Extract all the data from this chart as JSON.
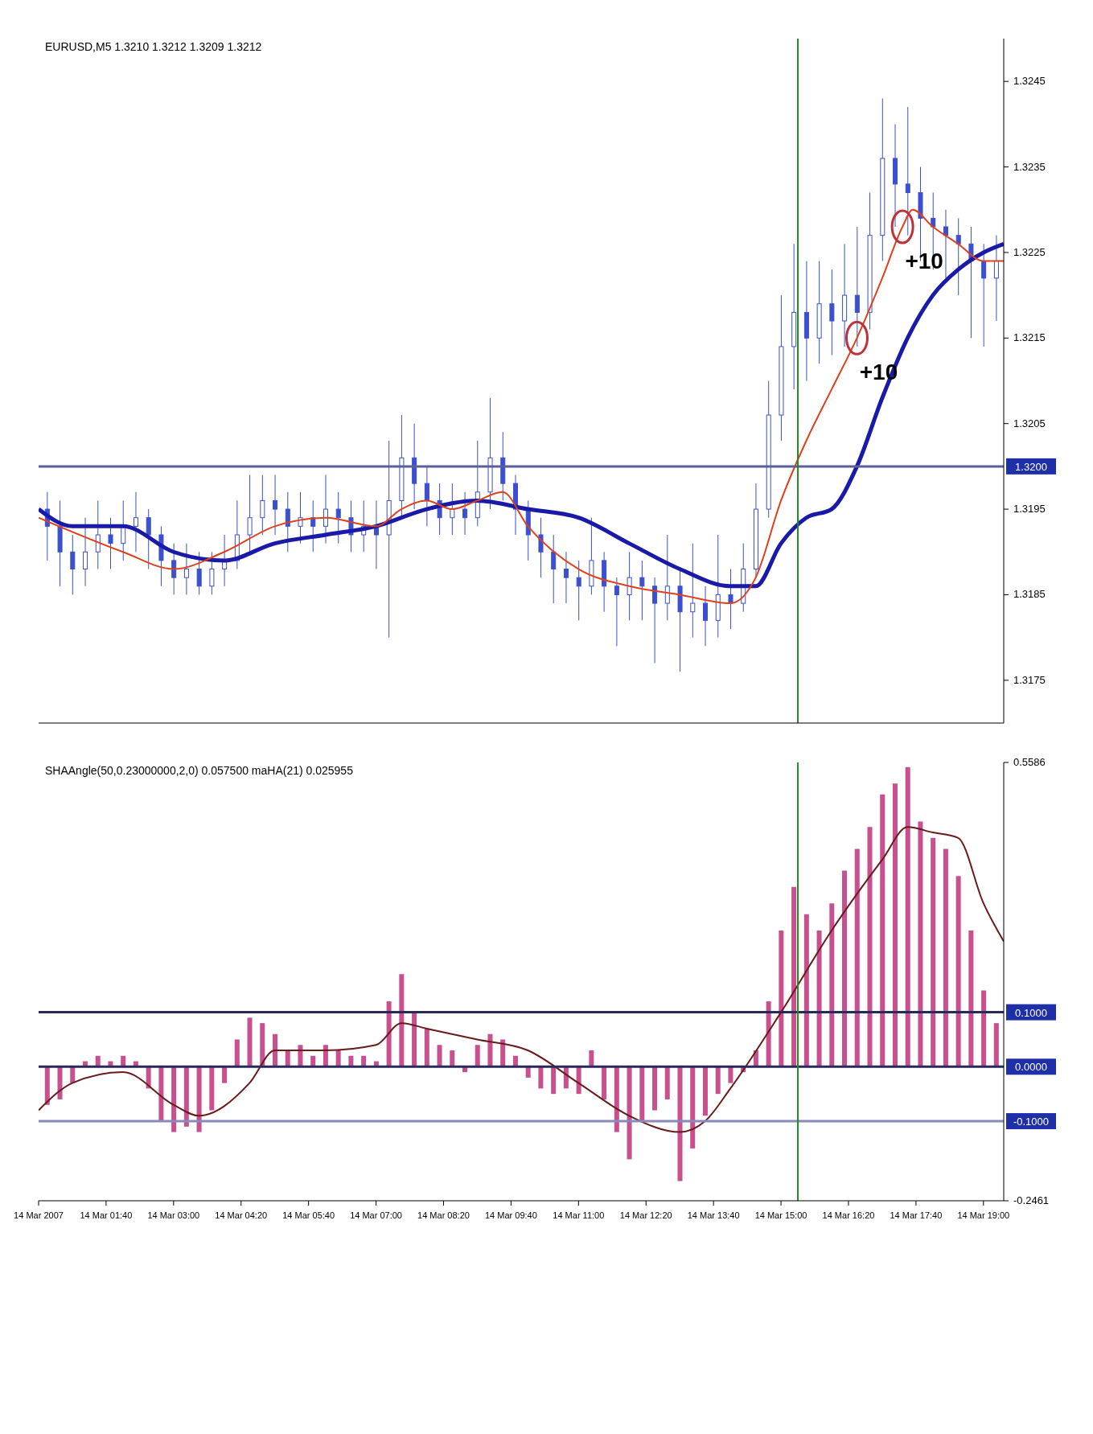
{
  "chart_data": [
    {
      "type": "candlestick",
      "title": "EURUSD,M5 1.3210 1.3212 1.3209 1.3212",
      "color": "#3b4fd0",
      "marker": "none",
      "tick_labels": "y",
      "x": [
        "2007-03-14T00:30",
        "2007-03-14T00:45",
        "2007-03-14T01:00",
        "2007-03-14T01:15",
        "2007-03-14T01:30",
        "2007-03-14T01:45",
        "2007-03-14T02:00",
        "2007-03-14T02:15",
        "2007-03-14T02:30",
        "2007-03-14T02:45",
        "2007-03-14T03:00",
        "2007-03-14T03:15",
        "2007-03-14T03:30",
        "2007-03-14T03:45",
        "2007-03-14T04:00",
        "2007-03-14T04:15",
        "2007-03-14T04:30",
        "2007-03-14T04:45",
        "2007-03-14T05:00",
        "2007-03-14T05:15",
        "2007-03-14T05:30",
        "2007-03-14T05:45",
        "2007-03-14T06:00",
        "2007-03-14T06:15",
        "2007-03-14T06:30",
        "2007-03-14T06:45",
        "2007-03-14T07:00",
        "2007-03-14T07:15",
        "2007-03-14T07:30",
        "2007-03-14T07:45",
        "2007-03-14T08:00",
        "2007-03-14T08:15",
        "2007-03-14T08:30",
        "2007-03-14T08:45",
        "2007-03-14T09:00",
        "2007-03-14T09:15",
        "2007-03-14T09:30",
        "2007-03-14T09:45",
        "2007-03-14T10:00",
        "2007-03-14T10:15",
        "2007-03-14T10:30",
        "2007-03-14T10:45",
        "2007-03-14T11:00",
        "2007-03-14T11:15",
        "2007-03-14T11:30",
        "2007-03-14T11:45",
        "2007-03-14T12:00",
        "2007-03-14T12:15",
        "2007-03-14T12:30",
        "2007-03-14T12:45",
        "2007-03-14T13:00",
        "2007-03-14T13:15",
        "2007-03-14T13:30",
        "2007-03-14T13:45",
        "2007-03-14T14:00",
        "2007-03-14T14:15",
        "2007-03-14T14:30",
        "2007-03-14T14:45",
        "2007-03-14T15:00",
        "2007-03-14T15:15",
        "2007-03-14T15:30",
        "2007-03-14T15:45",
        "2007-03-14T16:00",
        "2007-03-14T16:15",
        "2007-03-14T16:30",
        "2007-03-14T16:45",
        "2007-03-14T17:00",
        "2007-03-14T17:15",
        "2007-03-14T17:30",
        "2007-03-14T17:45",
        "2007-03-14T18:00",
        "2007-03-14T18:15",
        "2007-03-14T18:30",
        "2007-03-14T18:45",
        "2007-03-14T19:00",
        "2007-03-14T19:15"
      ],
      "ohlc": [
        [
          1.3195,
          1.3197,
          1.3189,
          1.3193
        ],
        [
          1.3193,
          1.3196,
          1.3186,
          1.319
        ],
        [
          1.319,
          1.3192,
          1.3185,
          1.3188
        ],
        [
          1.3188,
          1.3194,
          1.3186,
          1.319
        ],
        [
          1.319,
          1.3196,
          1.3188,
          1.3192
        ],
        [
          1.3192,
          1.3194,
          1.3188,
          1.3191
        ],
        [
          1.3191,
          1.3196,
          1.3189,
          1.3193
        ],
        [
          1.3193,
          1.3197,
          1.319,
          1.3194
        ],
        [
          1.3194,
          1.3195,
          1.3188,
          1.3192
        ],
        [
          1.3192,
          1.3193,
          1.3186,
          1.3189
        ],
        [
          1.3189,
          1.3191,
          1.3185,
          1.3187
        ],
        [
          1.3187,
          1.3191,
          1.3185,
          1.3188
        ],
        [
          1.3188,
          1.319,
          1.3185,
          1.3186
        ],
        [
          1.3186,
          1.319,
          1.3185,
          1.3188
        ],
        [
          1.3188,
          1.3192,
          1.3186,
          1.3189
        ],
        [
          1.3189,
          1.3196,
          1.3188,
          1.3192
        ],
        [
          1.3192,
          1.3199,
          1.319,
          1.3194
        ],
        [
          1.3194,
          1.3199,
          1.3192,
          1.3196
        ],
        [
          1.3196,
          1.3199,
          1.3192,
          1.3195
        ],
        [
          1.3195,
          1.3197,
          1.319,
          1.3193
        ],
        [
          1.3193,
          1.3197,
          1.3191,
          1.3194
        ],
        [
          1.3194,
          1.3196,
          1.319,
          1.3193
        ],
        [
          1.3193,
          1.3199,
          1.3191,
          1.3195
        ],
        [
          1.3195,
          1.3197,
          1.3191,
          1.3194
        ],
        [
          1.3194,
          1.3196,
          1.319,
          1.3192
        ],
        [
          1.3192,
          1.3196,
          1.319,
          1.3193
        ],
        [
          1.3193,
          1.3196,
          1.3188,
          1.3192
        ],
        [
          1.3192,
          1.3203,
          1.318,
          1.3196
        ],
        [
          1.3196,
          1.3206,
          1.3194,
          1.3201
        ],
        [
          1.3201,
          1.3205,
          1.3195,
          1.3198
        ],
        [
          1.3198,
          1.32,
          1.3193,
          1.3196
        ],
        [
          1.3196,
          1.3198,
          1.3192,
          1.3194
        ],
        [
          1.3194,
          1.3198,
          1.3192,
          1.3195
        ],
        [
          1.3195,
          1.3197,
          1.3192,
          1.3194
        ],
        [
          1.3194,
          1.3203,
          1.3193,
          1.3197
        ],
        [
          1.3197,
          1.3208,
          1.3195,
          1.3201
        ],
        [
          1.3201,
          1.3204,
          1.3196,
          1.3198
        ],
        [
          1.3198,
          1.3199,
          1.3192,
          1.3195
        ],
        [
          1.3195,
          1.3196,
          1.3189,
          1.3192
        ],
        [
          1.3192,
          1.3194,
          1.3187,
          1.319
        ],
        [
          1.319,
          1.3192,
          1.3184,
          1.3188
        ],
        [
          1.3188,
          1.319,
          1.3184,
          1.3187
        ],
        [
          1.3187,
          1.3189,
          1.3182,
          1.3186
        ],
        [
          1.3186,
          1.3194,
          1.3185,
          1.3189
        ],
        [
          1.3189,
          1.319,
          1.3183,
          1.3186
        ],
        [
          1.3186,
          1.3187,
          1.3179,
          1.3185
        ],
        [
          1.3185,
          1.319,
          1.3182,
          1.3187
        ],
        [
          1.3187,
          1.3189,
          1.3182,
          1.3186
        ],
        [
          1.3186,
          1.3187,
          1.3177,
          1.3184
        ],
        [
          1.3184,
          1.3192,
          1.3182,
          1.3186
        ],
        [
          1.3186,
          1.3188,
          1.3176,
          1.3183
        ],
        [
          1.3183,
          1.3191,
          1.318,
          1.3184
        ],
        [
          1.3184,
          1.3186,
          1.3179,
          1.3182
        ],
        [
          1.3182,
          1.3192,
          1.318,
          1.3185
        ],
        [
          1.3185,
          1.3188,
          1.3181,
          1.3184
        ],
        [
          1.3184,
          1.3191,
          1.3183,
          1.3188
        ],
        [
          1.3188,
          1.3198,
          1.3187,
          1.3195
        ],
        [
          1.3195,
          1.321,
          1.3194,
          1.3206
        ],
        [
          1.3206,
          1.322,
          1.3203,
          1.3214
        ],
        [
          1.3214,
          1.3226,
          1.3209,
          1.3218
        ],
        [
          1.3218,
          1.3224,
          1.321,
          1.3215
        ],
        [
          1.3215,
          1.3224,
          1.3212,
          1.3219
        ],
        [
          1.3219,
          1.3223,
          1.3213,
          1.3217
        ],
        [
          1.3217,
          1.3226,
          1.3214,
          1.322
        ],
        [
          1.322,
          1.3228,
          1.3214,
          1.3218
        ],
        [
          1.3218,
          1.3232,
          1.3216,
          1.3227
        ],
        [
          1.3227,
          1.3243,
          1.3224,
          1.3236
        ],
        [
          1.3236,
          1.324,
          1.3228,
          1.3233
        ],
        [
          1.3233,
          1.3242,
          1.3227,
          1.3232
        ],
        [
          1.3232,
          1.3235,
          1.3224,
          1.3229
        ],
        [
          1.3229,
          1.3232,
          1.3223,
          1.3228
        ],
        [
          1.3228,
          1.323,
          1.3222,
          1.3227
        ],
        [
          1.3227,
          1.3229,
          1.322,
          1.3226
        ],
        [
          1.3226,
          1.3228,
          1.3215,
          1.3224
        ],
        [
          1.3224,
          1.3226,
          1.3214,
          1.3222
        ],
        [
          1.3222,
          1.3227,
          1.3217,
          1.3224
        ]
      ],
      "series": [
        {
          "type": "line",
          "color": "#1a1aa8",
          "x": [
            "2007-03-14T00:20",
            "2007-03-14T01:00",
            "2007-03-14T02:00",
            "2007-03-14T03:00",
            "2007-03-14T04:00",
            "2007-03-14T05:00",
            "2007-03-14T06:00",
            "2007-03-14T07:00",
            "2007-03-14T08:00",
            "2007-03-14T09:00",
            "2007-03-14T10:00",
            "2007-03-14T11:00",
            "2007-03-14T12:00",
            "2007-03-14T13:00",
            "2007-03-14T14:00",
            "2007-03-14T14:30",
            "2007-03-14T15:00",
            "2007-03-14T15:30",
            "2007-03-14T16:00",
            "2007-03-14T16:30",
            "2007-03-14T17:00",
            "2007-03-14T17:30",
            "2007-03-14T18:00",
            "2007-03-14T18:30",
            "2007-03-14T19:00",
            "2007-03-14T19:24"
          ],
          "values": [
            1.3195,
            1.3193,
            1.3193,
            1.319,
            1.3189,
            1.3191,
            1.3192,
            1.3193,
            1.3195,
            1.3196,
            1.3195,
            1.3194,
            1.3191,
            1.3188,
            1.3186,
            1.3186,
            1.3191,
            1.3194,
            1.3195,
            1.32,
            1.3208,
            1.3215,
            1.322,
            1.3223,
            1.3225,
            1.3226
          ]
        },
        {
          "type": "line",
          "color": "#e0401c",
          "x": [
            "2007-03-14T00:20",
            "2007-03-14T02:00",
            "2007-03-14T03:00",
            "2007-03-14T04:00",
            "2007-03-14T05:00",
            "2007-03-14T06:00",
            "2007-03-14T07:00",
            "2007-03-14T07:30",
            "2007-03-14T08:00",
            "2007-03-14T08:30",
            "2007-03-14T09:00",
            "2007-03-14T09:30",
            "2007-03-14T10:00",
            "2007-03-14T11:00",
            "2007-03-14T12:00",
            "2007-03-14T13:00",
            "2007-03-14T14:00",
            "2007-03-14T14:30",
            "2007-03-14T15:00",
            "2007-03-14T15:30",
            "2007-03-14T16:00",
            "2007-03-14T16:30",
            "2007-03-14T17:00",
            "2007-03-14T17:24",
            "2007-03-14T17:36",
            "2007-03-14T18:00",
            "2007-03-14T18:30",
            "2007-03-14T19:00",
            "2007-03-14T19:24"
          ],
          "values": [
            1.3194,
            1.319,
            1.3188,
            1.319,
            1.3193,
            1.3194,
            1.3193,
            1.3195,
            1.3196,
            1.3195,
            1.3196,
            1.3197,
            1.3193,
            1.3188,
            1.3186,
            1.3185,
            1.3184,
            1.3187,
            1.3196,
            1.3203,
            1.3209,
            1.3215,
            1.3222,
            1.3228,
            1.323,
            1.3228,
            1.3226,
            1.3224,
            1.3224
          ]
        }
      ],
      "xlim": [
        "2007-03-14T00:20",
        "2007-03-14T19:24"
      ],
      "ylim": [
        1.317,
        1.325
      ],
      "yticks": [
        1.3175,
        1.3185,
        1.3195,
        1.3205,
        1.3215,
        1.3225,
        1.3235,
        1.3245
      ],
      "ref_lines": [
        {
          "axis": "y",
          "value": 1.32,
          "label": "1.3200",
          "color": "#5a5f9a"
        },
        {
          "axis": "x",
          "value": "2007-03-14T15:20",
          "label": null,
          "color": "#1f8a1f"
        }
      ],
      "annotations": [
        {
          "text": "+10",
          "x": "2007-03-14T16:30",
          "y": 1.3215
        },
        {
          "text": "+10",
          "x": "2007-03-14T17:24",
          "y": 1.3228
        }
      ]
    },
    {
      "type": "bar",
      "title": "SHAAngle(50,0.23000000,2,0) 0.057500 maHA(21) 0.025955",
      "color": "#c8508e",
      "x": [
        "2007-03-14T00:30",
        "2007-03-14T00:45",
        "2007-03-14T01:00",
        "2007-03-14T01:15",
        "2007-03-14T01:30",
        "2007-03-14T01:45",
        "2007-03-14T02:00",
        "2007-03-14T02:15",
        "2007-03-14T02:30",
        "2007-03-14T02:45",
        "2007-03-14T03:00",
        "2007-03-14T03:15",
        "2007-03-14T03:30",
        "2007-03-14T03:45",
        "2007-03-14T04:00",
        "2007-03-14T04:15",
        "2007-03-14T04:30",
        "2007-03-14T04:45",
        "2007-03-14T05:00",
        "2007-03-14T05:15",
        "2007-03-14T05:30",
        "2007-03-14T05:45",
        "2007-03-14T06:00",
        "2007-03-14T06:15",
        "2007-03-14T06:30",
        "2007-03-14T06:45",
        "2007-03-14T07:00",
        "2007-03-14T07:15",
        "2007-03-14T07:30",
        "2007-03-14T07:45",
        "2007-03-14T08:00",
        "2007-03-14T08:15",
        "2007-03-14T08:30",
        "2007-03-14T08:45",
        "2007-03-14T09:00",
        "2007-03-14T09:15",
        "2007-03-14T09:30",
        "2007-03-14T09:45",
        "2007-03-14T10:00",
        "2007-03-14T10:15",
        "2007-03-14T10:30",
        "2007-03-14T10:45",
        "2007-03-14T11:00",
        "2007-03-14T11:15",
        "2007-03-14T11:30",
        "2007-03-14T11:45",
        "2007-03-14T12:00",
        "2007-03-14T12:15",
        "2007-03-14T12:30",
        "2007-03-14T12:45",
        "2007-03-14T13:00",
        "2007-03-14T13:15",
        "2007-03-14T13:30",
        "2007-03-14T13:45",
        "2007-03-14T14:00",
        "2007-03-14T14:15",
        "2007-03-14T14:30",
        "2007-03-14T14:45",
        "2007-03-14T15:00",
        "2007-03-14T15:15",
        "2007-03-14T15:30",
        "2007-03-14T15:45",
        "2007-03-14T16:00",
        "2007-03-14T16:15",
        "2007-03-14T16:30",
        "2007-03-14T16:45",
        "2007-03-14T17:00",
        "2007-03-14T17:15",
        "2007-03-14T17:30",
        "2007-03-14T17:45",
        "2007-03-14T18:00",
        "2007-03-14T18:15",
        "2007-03-14T18:30",
        "2007-03-14T18:45",
        "2007-03-14T19:00",
        "2007-03-14T19:15"
      ],
      "values": [
        -0.07,
        -0.06,
        -0.03,
        0.01,
        0.02,
        0.01,
        0.02,
        0.01,
        -0.04,
        -0.1,
        -0.12,
        -0.11,
        -0.12,
        -0.08,
        -0.03,
        0.05,
        0.09,
        0.08,
        0.06,
        0.03,
        0.04,
        0.02,
        0.04,
        0.03,
        0.02,
        0.02,
        0.01,
        0.12,
        0.17,
        0.1,
        0.07,
        0.04,
        0.03,
        -0.01,
        0.04,
        0.06,
        0.05,
        0.02,
        -0.02,
        -0.04,
        -0.05,
        -0.04,
        -0.05,
        0.03,
        -0.06,
        -0.12,
        -0.17,
        -0.1,
        -0.08,
        -0.06,
        -0.21,
        -0.15,
        -0.09,
        -0.05,
        -0.03,
        -0.01,
        0.03,
        0.12,
        0.25,
        0.33,
        0.28,
        0.25,
        0.3,
        0.36,
        0.4,
        0.44,
        0.5,
        0.52,
        0.55,
        0.45,
        0.42,
        0.4,
        0.35,
        0.25,
        0.14,
        0.08
      ],
      "marker": "none",
      "series": [
        {
          "type": "line",
          "color": "#6b1a1a",
          "x": [
            "2007-03-14T00:20",
            "2007-03-14T01:00",
            "2007-03-14T02:00",
            "2007-03-14T03:00",
            "2007-03-14T03:30",
            "2007-03-14T04:30",
            "2007-03-14T05:00",
            "2007-03-14T06:00",
            "2007-03-14T07:00",
            "2007-03-14T07:30",
            "2007-03-14T08:00",
            "2007-03-14T09:00",
            "2007-03-14T10:00",
            "2007-03-14T11:00",
            "2007-03-14T12:00",
            "2007-03-14T13:00",
            "2007-03-14T13:30",
            "2007-03-14T14:00",
            "2007-03-14T15:00",
            "2007-03-14T16:00",
            "2007-03-14T17:00",
            "2007-03-14T17:30",
            "2007-03-14T18:00",
            "2007-03-14T18:30",
            "2007-03-14T19:00",
            "2007-03-14T19:24"
          ],
          "values": [
            -0.08,
            -0.03,
            -0.01,
            -0.07,
            -0.09,
            -0.03,
            0.03,
            0.03,
            0.04,
            0.08,
            0.07,
            0.05,
            0.03,
            -0.03,
            -0.09,
            -0.12,
            -0.1,
            -0.04,
            0.1,
            0.25,
            0.38,
            0.44,
            0.43,
            0.42,
            0.3,
            0.23
          ]
        }
      ],
      "xlim": [
        "2007-03-14T00:20",
        "2007-03-14T19:24"
      ],
      "xticks": [
        {
          "value": "2007-03-14T00:20",
          "label": "14 Mar 2007"
        },
        {
          "value": "2007-03-14T01:40",
          "label": "14 Mar 01:40"
        },
        {
          "value": "2007-03-14T03:00",
          "label": "14 Mar 03:00"
        },
        {
          "value": "2007-03-14T04:20",
          "label": "14 Mar 04:20"
        },
        {
          "value": "2007-03-14T05:40",
          "label": "14 Mar 05:40"
        },
        {
          "value": "2007-03-14T07:00",
          "label": "14 Mar 07:00"
        },
        {
          "value": "2007-03-14T08:20",
          "label": "14 Mar 08:20"
        },
        {
          "value": "2007-03-14T09:40",
          "label": "14 Mar 09:40"
        },
        {
          "value": "2007-03-14T11:00",
          "label": "14 Mar 11:00"
        },
        {
          "value": "2007-03-14T12:20",
          "label": "14 Mar 12:20"
        },
        {
          "value": "2007-03-14T13:40",
          "label": "14 Mar 13:40"
        },
        {
          "value": "2007-03-14T15:00",
          "label": "14 Mar 15:00"
        },
        {
          "value": "2007-03-14T16:20",
          "label": "14 Mar 16:20"
        },
        {
          "value": "2007-03-14T17:40",
          "label": "14 Mar 17:40"
        },
        {
          "value": "2007-03-14T19:00",
          "label": "14 Mar 19:00"
        }
      ],
      "ylim": [
        -0.2461,
        0.5586
      ],
      "yticks": [
        -0.2461,
        0.5586
      ],
      "ref_lines": [
        {
          "axis": "y",
          "value": 0.1,
          "label": "0.1000",
          "color": "#2a2a5a"
        },
        {
          "axis": "y",
          "value": 0,
          "label": "0.0000",
          "color": "#2a2a5a"
        },
        {
          "axis": "y",
          "value": -0.1,
          "label": "-0.1000",
          "color": "#8a8ab8"
        },
        {
          "axis": "x",
          "value": "2007-03-14T15:20",
          "label": null,
          "color": "#1f8a1f"
        }
      ]
    }
  ]
}
